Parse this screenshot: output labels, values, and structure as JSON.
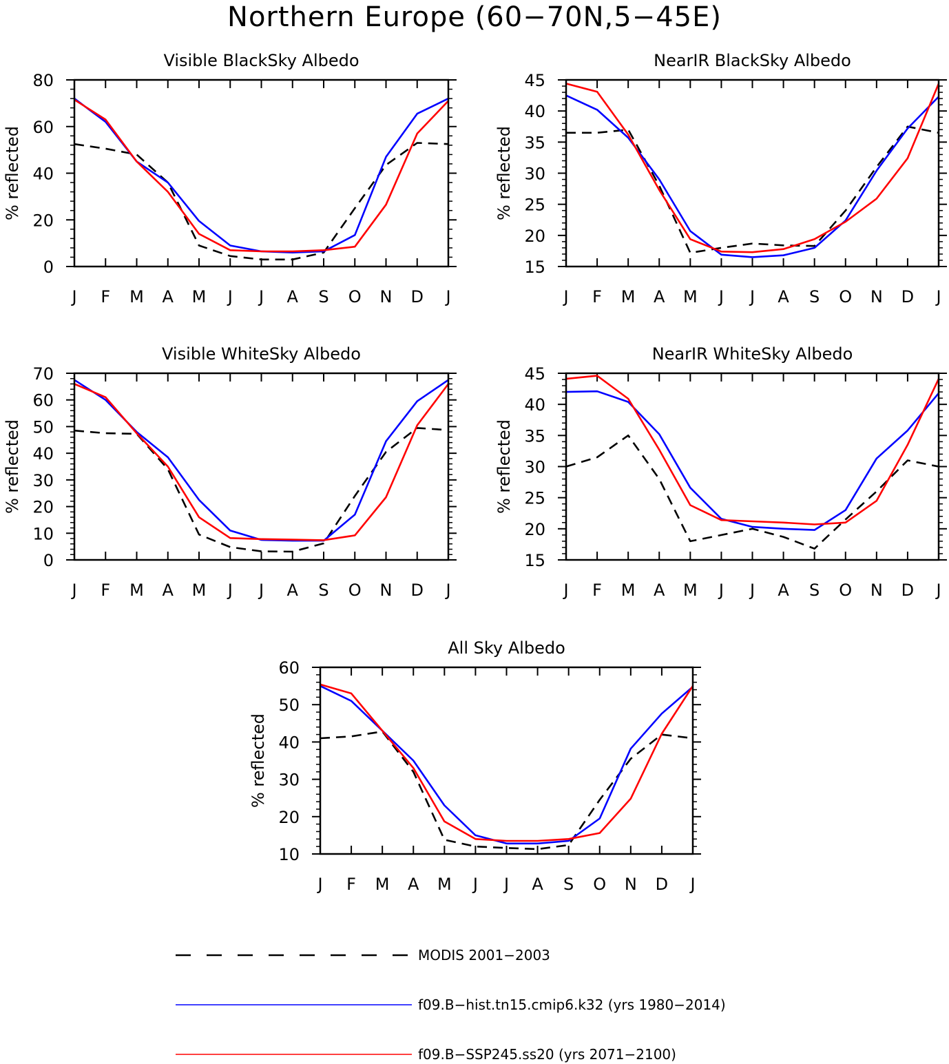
{
  "title": "Northern Europe (60−70N,5−45E)",
  "legend": [
    {
      "label": "MODIS 2001−2003",
      "color": "#000000",
      "dash": true
    },
    {
      "label": "f09.B−hist.tn15.cmip6.k32 (yrs 1980−2014)",
      "color": "#0000ff",
      "dash": false
    },
    {
      "label": "f09.B−SSP245.ss20 (yrs 2071−2100)",
      "color": "#ff0000",
      "dash": false
    }
  ],
  "chart_data": [
    {
      "type": "line",
      "title": "Visible BlackSky Albedo",
      "ylabel": "% reflected",
      "categories": [
        "J",
        "F",
        "M",
        "A",
        "M",
        "J",
        "J",
        "A",
        "S",
        "O",
        "N",
        "D",
        "J"
      ],
      "ylim": [
        0,
        80
      ],
      "yticks": [
        0,
        20,
        40,
        60,
        80
      ],
      "series": [
        {
          "name": "MODIS 2001−2003",
          "values": [
            52.5,
            50.5,
            48,
            36,
            9,
            4.5,
            3,
            3,
            6,
            25,
            43.5,
            53,
            52.5
          ]
        },
        {
          "name": "f09.B−hist.tn15.cmip6.k32 (yrs 1980−2014)",
          "values": [
            72,
            62,
            45,
            36,
            19.5,
            9,
            6.5,
            6,
            6.5,
            13.5,
            47,
            65.5,
            72
          ]
        },
        {
          "name": "f09.B−SSP245.ss20 (yrs 2071−2100)",
          "values": [
            71.5,
            63,
            45,
            32,
            14,
            7,
            6.5,
            6.5,
            7,
            8.5,
            26.5,
            57,
            71
          ]
        }
      ]
    },
    {
      "type": "line",
      "title": "NearIR BlackSky Albedo",
      "ylabel": "% reflected",
      "categories": [
        "J",
        "F",
        "M",
        "A",
        "M",
        "J",
        "J",
        "A",
        "S",
        "O",
        "N",
        "D",
        "J"
      ],
      "ylim": [
        15,
        45
      ],
      "yticks": [
        15,
        20,
        25,
        30,
        35,
        40,
        45
      ],
      "series": [
        {
          "name": "MODIS 2001−2003",
          "values": [
            36.5,
            36.5,
            37,
            28,
            17.2,
            18,
            18.7,
            18.4,
            18.3,
            24,
            31,
            37.5,
            36.5
          ]
        },
        {
          "name": "f09.B−hist.tn15.cmip6.k32 (yrs 1980−2014)",
          "values": [
            42.5,
            40.2,
            35.7,
            29,
            20.7,
            16.9,
            16.5,
            16.8,
            18,
            22.4,
            30.4,
            37.2,
            42.3
          ]
        },
        {
          "name": "f09.B−SSP245.ss20 (yrs 2071−2100)",
          "values": [
            44.4,
            43.1,
            36.2,
            27.3,
            19.4,
            17.4,
            17.3,
            17.8,
            19.4,
            22.2,
            25.9,
            32.4,
            44.4
          ]
        }
      ]
    },
    {
      "type": "line",
      "title": "Visible WhiteSky Albedo",
      "ylabel": "% reflected",
      "categories": [
        "J",
        "F",
        "M",
        "A",
        "M",
        "J",
        "J",
        "A",
        "S",
        "O",
        "N",
        "D",
        "J"
      ],
      "ylim": [
        0,
        70
      ],
      "yticks": [
        0,
        10,
        20,
        30,
        40,
        50,
        60,
        70
      ],
      "series": [
        {
          "name": "MODIS 2001−2003",
          "values": [
            48.5,
            47.5,
            47.3,
            34,
            9.5,
            4.8,
            3.2,
            3.1,
            6.2,
            24,
            40.5,
            49.5,
            48.7
          ]
        },
        {
          "name": "f09.B−hist.tn15.cmip6.k32 (yrs 1980−2014)",
          "values": [
            67.5,
            60,
            48,
            38.5,
            22.5,
            11,
            7.5,
            7.2,
            7.2,
            17,
            44.5,
            59.5,
            67.5
          ]
        },
        {
          "name": "f09.B−SSP245.ss20 (yrs 2071−2100)",
          "values": [
            66,
            61,
            47.5,
            35,
            16,
            8.2,
            7.8,
            7.6,
            7.4,
            9.2,
            23.5,
            50.5,
            66
          ]
        }
      ]
    },
    {
      "type": "line",
      "title": "NearIR WhiteSky Albedo",
      "ylabel": "% reflected",
      "categories": [
        "J",
        "F",
        "M",
        "A",
        "M",
        "J",
        "J",
        "A",
        "S",
        "O",
        "N",
        "D",
        "J"
      ],
      "ylim": [
        15,
        45
      ],
      "yticks": [
        15,
        20,
        25,
        30,
        35,
        40,
        45
      ],
      "series": [
        {
          "name": "MODIS 2001−2003",
          "values": [
            30,
            31.5,
            35,
            28,
            18,
            19,
            20,
            18.7,
            16.8,
            21.5,
            26,
            31,
            30
          ]
        },
        {
          "name": "f09.B−hist.tn15.cmip6.k32 (yrs 1980−2014)",
          "values": [
            42,
            42.1,
            40.4,
            35.2,
            26.6,
            21.6,
            20.3,
            20,
            19.8,
            23,
            31.3,
            35.8,
            41.8
          ]
        },
        {
          "name": "f09.B−SSP245.ss20 (yrs 2071−2100)",
          "values": [
            44.1,
            44.6,
            40.9,
            32.7,
            23.8,
            21.4,
            21.2,
            21,
            20.7,
            21,
            24.5,
            33.5,
            44.1
          ]
        }
      ]
    },
    {
      "type": "line",
      "title": "All Sky Albedo",
      "ylabel": "% reflected",
      "categories": [
        "J",
        "F",
        "M",
        "A",
        "M",
        "J",
        "J",
        "A",
        "S",
        "O",
        "N",
        "D",
        "J"
      ],
      "ylim": [
        10,
        60
      ],
      "yticks": [
        10,
        20,
        30,
        40,
        50,
        60
      ],
      "series": [
        {
          "name": "MODIS 2001−2003",
          "values": [
            41,
            41.5,
            42.8,
            32,
            13.8,
            12,
            11.6,
            11.3,
            12.4,
            24.5,
            35.5,
            42,
            41
          ]
        },
        {
          "name": "f09.B−hist.tn15.cmip6.k32 (yrs 1980−2014)",
          "values": [
            55,
            51,
            43,
            35,
            23,
            15,
            12.8,
            12.8,
            13.5,
            19.5,
            38.2,
            47.6,
            54.8
          ]
        },
        {
          "name": "f09.B−SSP245.ss20 (yrs 2071−2100)",
          "values": [
            55.4,
            53,
            43,
            33,
            18.7,
            14,
            13.5,
            13.5,
            14,
            15.6,
            24.8,
            42.2,
            55
          ]
        }
      ]
    }
  ]
}
